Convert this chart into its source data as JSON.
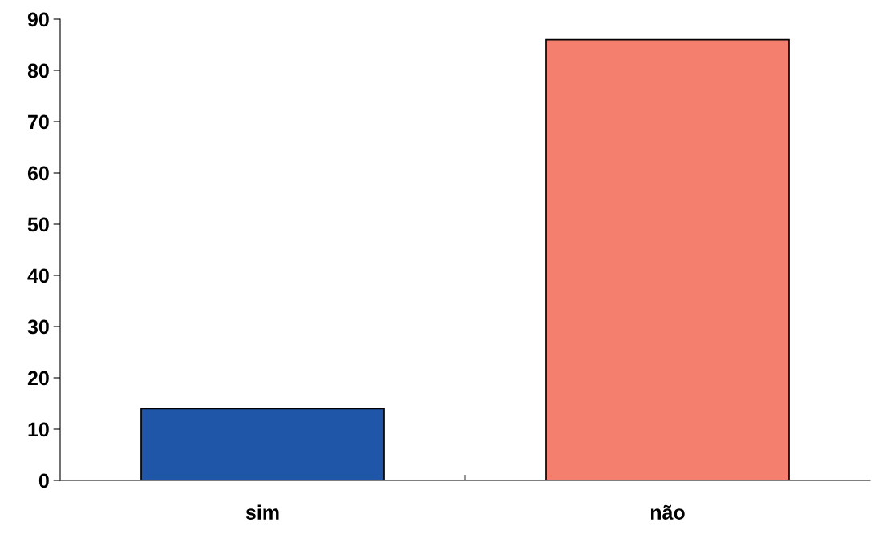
{
  "chart_data": {
    "type": "bar",
    "categories": [
      "sim",
      "não"
    ],
    "values": [
      14,
      86
    ],
    "colors": [
      "#1f56a8",
      "#f47f6e"
    ],
    "ylim": [
      0,
      90
    ],
    "yticks": [
      0,
      10,
      20,
      30,
      40,
      50,
      60,
      70,
      80,
      90
    ],
    "grid": false
  }
}
